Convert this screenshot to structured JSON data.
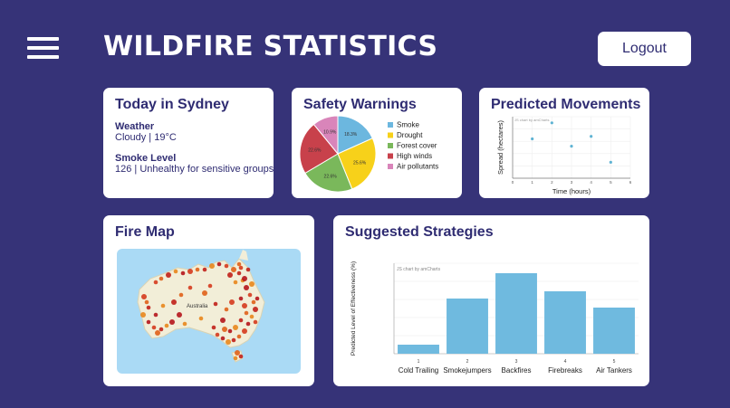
{
  "header": {
    "title": "WILDFIRE STATISTICS",
    "logout_label": "Logout",
    "menu_icon": "hamburger-menu-icon"
  },
  "today": {
    "title": "Today in Sydney",
    "weather_label": "Weather",
    "weather_value": "Cloudy | 19°C",
    "smoke_label": "Smoke Level",
    "smoke_value": "126 | Unhealthy for sensitive groups"
  },
  "safety": {
    "title": "Safety Warnings"
  },
  "predicted": {
    "title": "Predicted Movements"
  },
  "firemap": {
    "title": "Fire Map",
    "map_label": "Australia"
  },
  "strategies": {
    "title": "Suggested Strategies"
  },
  "colors": {
    "background": "#363378",
    "card": "#ffffff",
    "text": "#2f2c72",
    "bar": "#6fbadf",
    "scatter": "#5fb3d3"
  },
  "chart_data": [
    {
      "type": "pie",
      "title": "Safety Warnings",
      "legend_position": "right",
      "slices": [
        {
          "name": "Smoke",
          "value": 18.3,
          "label": "18.3%",
          "color": "#6cb7df"
        },
        {
          "name": "Drought",
          "value": 25.6,
          "label": "25.6%",
          "color": "#f7d11a"
        },
        {
          "name": "Forest cover",
          "value": 22.6,
          "label": "22.6%",
          "color": "#7ab85b"
        },
        {
          "name": "High winds",
          "value": 22.6,
          "label": "22.6%",
          "color": "#c8414b"
        },
        {
          "name": "Air pollutants",
          "value": 10.9,
          "label": "10.9%",
          "color": "#d985ba"
        }
      ]
    },
    {
      "type": "scatter",
      "title": "Predicted Movements",
      "credit": "JS chart by amCharts",
      "xlabel": "Time (hours)",
      "ylabel": "Spread (hectares)",
      "xlim": [
        0,
        6
      ],
      "x_ticks": [
        "0",
        "1",
        "2",
        "3",
        "4",
        "5",
        "6"
      ],
      "ylim": [
        0,
        5
      ],
      "grid": true,
      "points": [
        {
          "x": 1,
          "y": 3.2
        },
        {
          "x": 2,
          "y": 4.5
        },
        {
          "x": 3,
          "y": 2.6
        },
        {
          "x": 4,
          "y": 3.4
        },
        {
          "x": 5,
          "y": 1.3
        }
      ]
    },
    {
      "type": "bar",
      "title": "Suggested Strategies",
      "credit": "JS chart by amCharts",
      "xlabel": "",
      "ylabel": "Predicted Level of Effectiveness (%)",
      "ylim": [
        0,
        100
      ],
      "grid": true,
      "categories": [
        {
          "num": "1",
          "name": "Cold Trailing"
        },
        {
          "num": "2",
          "name": "Smokejumpers"
        },
        {
          "num": "3",
          "name": "Backfires"
        },
        {
          "num": "4",
          "name": "Firebreaks"
        },
        {
          "num": "5",
          "name": "Air Tankers"
        }
      ],
      "values": [
        10,
        61,
        89,
        69,
        51
      ]
    }
  ]
}
